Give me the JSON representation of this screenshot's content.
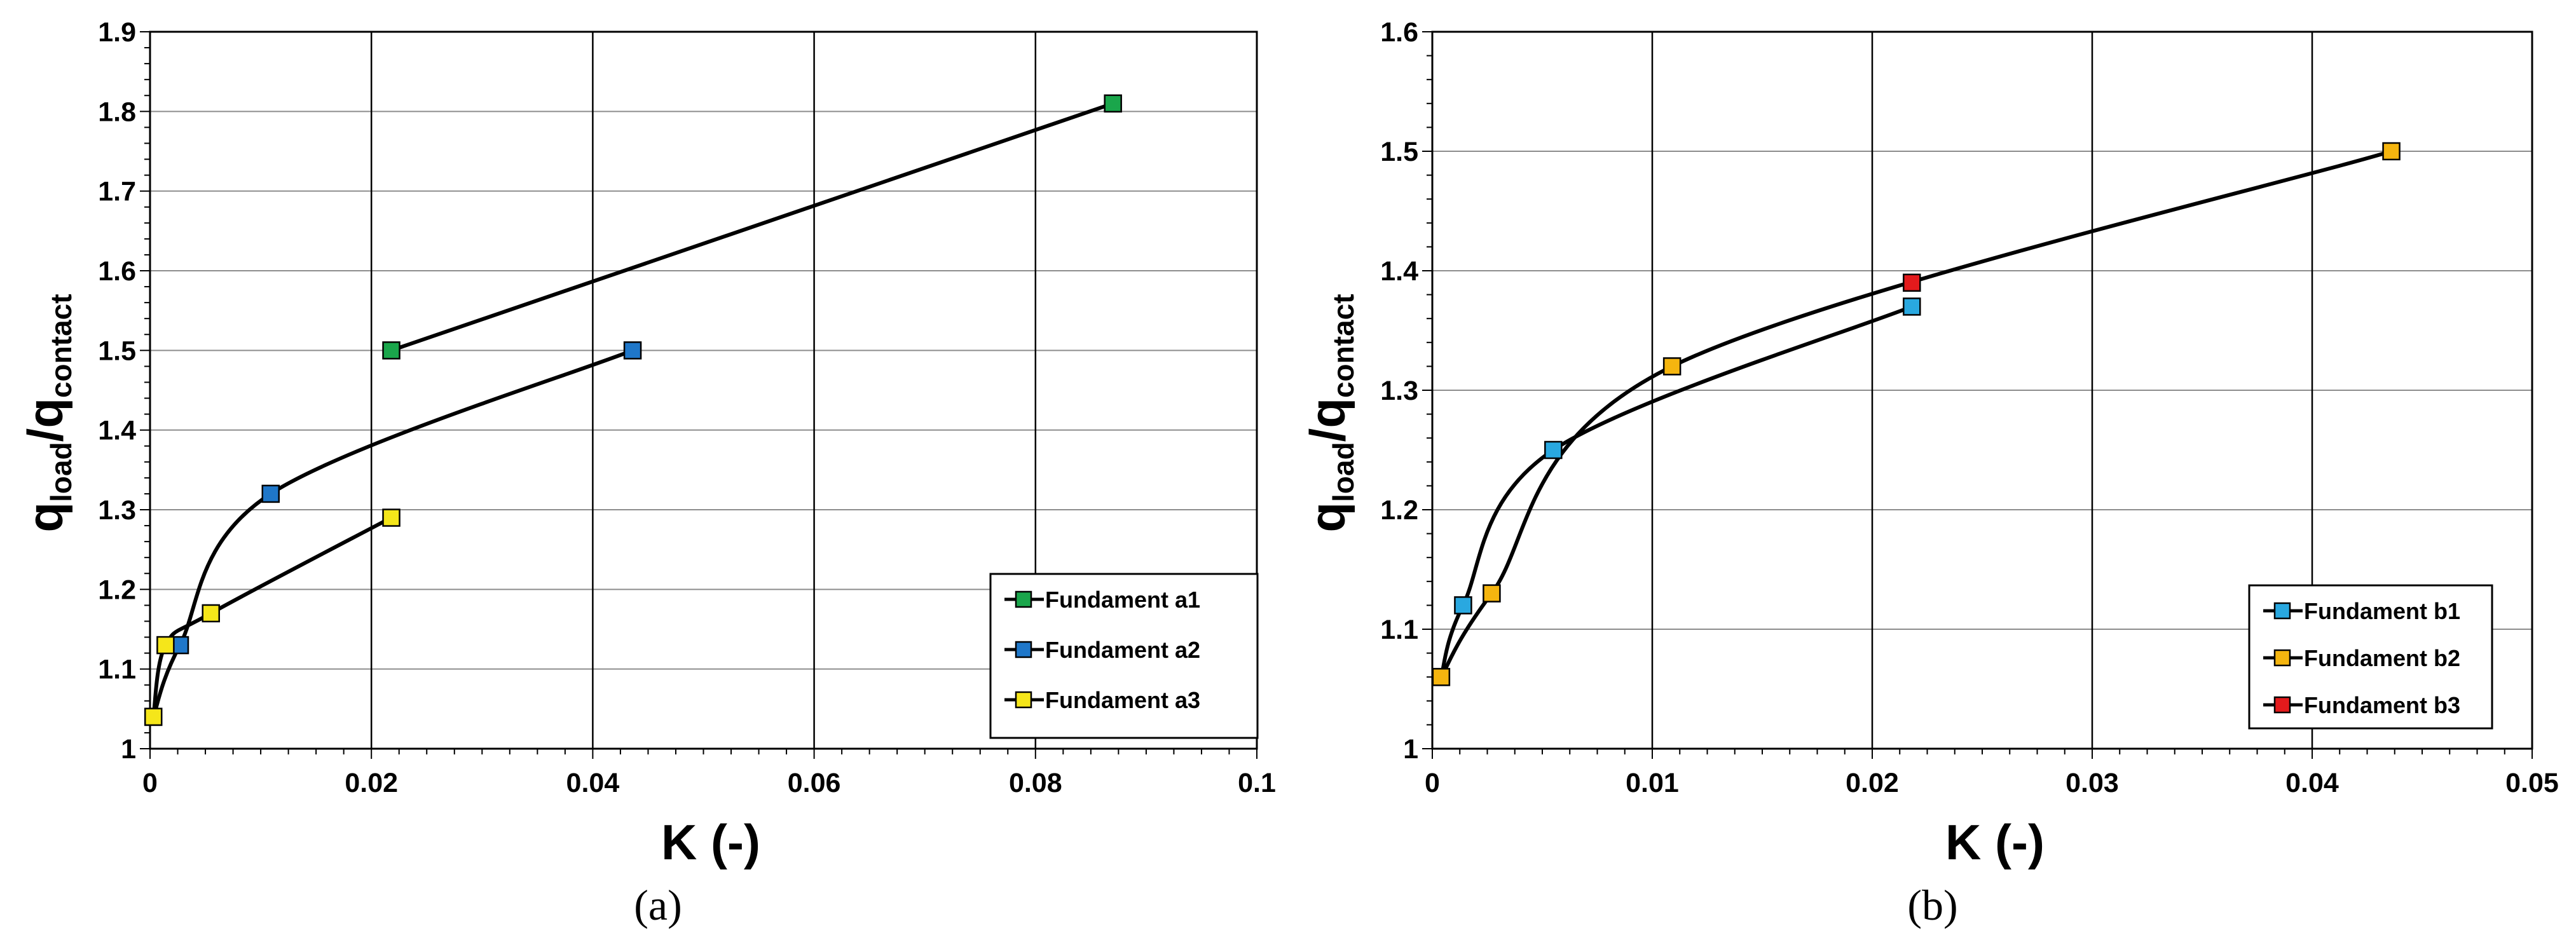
{
  "chart_data": [
    {
      "type": "line",
      "panel_label": "(a)",
      "xlabel": "K (-)",
      "ylabel_main": "q",
      "ylabel_sub1": "load",
      "ylabel_slash": "/q",
      "ylabel_sub2": "contact",
      "xlim": [
        0,
        0.1
      ],
      "ylim": [
        1,
        1.9
      ],
      "xticks": [
        0,
        0.02,
        0.04,
        0.06,
        0.08,
        0.1
      ],
      "xtick_labels": [
        "0",
        "0.02",
        "0.04",
        "0.06",
        "0.08",
        "0.1"
      ],
      "yticks": [
        1,
        1.1,
        1.2,
        1.3,
        1.4,
        1.5,
        1.6,
        1.7,
        1.8,
        1.9
      ],
      "ytick_labels": [
        "1",
        "1.1",
        "1.2",
        "1.3",
        "1.4",
        "1.5",
        "1.6",
        "1.7",
        "1.8",
        "1.9"
      ],
      "grid": true,
      "legend_position": "bottom-right",
      "series": [
        {
          "name": "Fundament a1",
          "color": "#1aa64b",
          "points": [
            [
              0.0218,
              1.5
            ],
            [
              0.087,
              1.81
            ]
          ]
        },
        {
          "name": "Fundament a2",
          "color": "#1f77c9",
          "points": [
            [
              0.0003,
              1.04
            ],
            [
              0.0027,
              1.13
            ],
            [
              0.0109,
              1.32
            ],
            [
              0.0436,
              1.5
            ]
          ]
        },
        {
          "name": "Fundament a3",
          "color": "#f5e61a",
          "points": [
            [
              0.0003,
              1.04
            ],
            [
              0.0014,
              1.13
            ],
            [
              0.0055,
              1.17
            ],
            [
              0.0218,
              1.29
            ]
          ]
        }
      ]
    },
    {
      "type": "line",
      "panel_label": "(b)",
      "xlabel": "K (-)",
      "ylabel_main": "q",
      "ylabel_sub1": "load",
      "ylabel_slash": "/q",
      "ylabel_sub2": "contact",
      "xlim": [
        0,
        0.05
      ],
      "ylim": [
        1,
        1.6
      ],
      "xticks": [
        0,
        0.01,
        0.02,
        0.03,
        0.04,
        0.05
      ],
      "xtick_labels": [
        "0",
        "0.01",
        "0.02",
        "0.03",
        "0.04",
        "0.05"
      ],
      "yticks": [
        1,
        1.1,
        1.2,
        1.3,
        1.4,
        1.5,
        1.6
      ],
      "ytick_labels": [
        "1",
        "1.1",
        "1.2",
        "1.3",
        "1.4",
        "1.5",
        "1.6"
      ],
      "grid": true,
      "legend_position": "bottom-right",
      "series": [
        {
          "name": "Fundament b1",
          "color": "#29a8e0",
          "points": [
            [
              0.0004,
              1.06
            ],
            [
              0.0014,
              1.12
            ],
            [
              0.0055,
              1.25
            ],
            [
              0.0218,
              1.37
            ]
          ]
        },
        {
          "name": "Fundament b2",
          "color": "#f5b50f",
          "points": [
            [
              0.0004,
              1.06
            ],
            [
              0.0027,
              1.13
            ],
            [
              0.0109,
              1.32
            ],
            [
              0.0436,
              1.5
            ]
          ]
        },
        {
          "name": "Fundament b3",
          "color": "#e31a1c",
          "points": [
            [
              0.0218,
              1.39
            ]
          ]
        }
      ]
    }
  ]
}
